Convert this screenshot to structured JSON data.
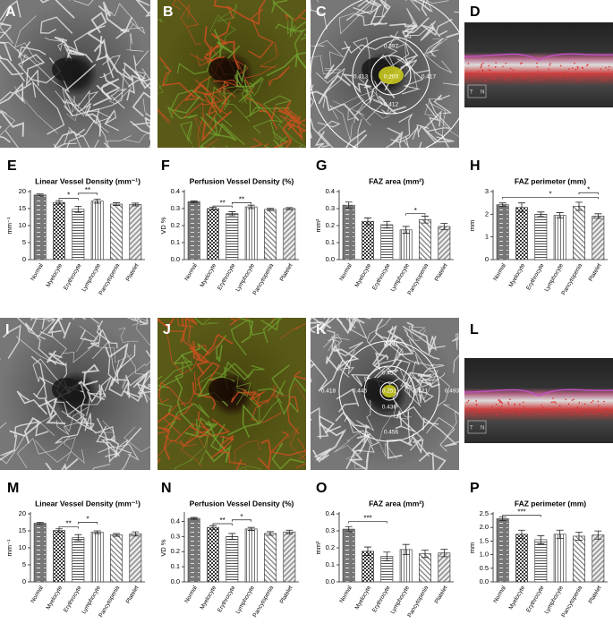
{
  "chart_data": [
    {
      "type": "bar",
      "panel": "E",
      "title": "Linear Vessel Density (mm⁻¹)",
      "ylabel": "mm⁻¹",
      "categories": [
        "Normal",
        "Myelocyte",
        "Erythrocyte",
        "Lymphocyte",
        "Pancytopenia",
        "Platelet"
      ],
      "values": [
        19,
        16.8,
        14.8,
        17.2,
        16.3,
        16.2
      ],
      "errors": [
        0.3,
        0.5,
        0.9,
        0.6,
        0.4,
        0.4
      ],
      "ylim": [
        0,
        20
      ],
      "yticks": [
        0,
        5,
        10,
        15,
        20
      ],
      "significance": [
        {
          "label": "*",
          "from": "Myelocyte",
          "to": "Erythrocyte",
          "y": 18
        },
        {
          "label": "**",
          "from": "Erythrocyte",
          "to": "Lymphocyte",
          "y": 19.5
        }
      ]
    },
    {
      "type": "bar",
      "panel": "F",
      "title": "Perfusion Vessel Density (%)",
      "ylabel": "VD %",
      "categories": [
        "Normal",
        "Myelocyte",
        "Erythrocyte",
        "Lymphocyte",
        "Pancytopenia",
        "Platelet"
      ],
      "values": [
        0.34,
        0.3,
        0.27,
        0.31,
        0.295,
        0.3
      ],
      "errors": [
        0.005,
        0.008,
        0.012,
        0.01,
        0.006,
        0.006
      ],
      "ylim": [
        0,
        0.4
      ],
      "yticks": [
        {
          "value": 0,
          "label": "0.0"
        },
        0.1,
        0.2,
        0.3,
        0.4
      ],
      "significance": [
        {
          "label": "**",
          "from": "Myelocyte",
          "to": "Erythrocyte",
          "y": 0.315
        },
        {
          "label": "**",
          "from": "Erythrocyte",
          "to": "Lymphocyte",
          "y": 0.335
        }
      ]
    },
    {
      "type": "bar",
      "panel": "G",
      "title": "FAZ area (mm²)",
      "ylabel": "mm²",
      "categories": [
        "Normal",
        "Myelocyte",
        "Erythrocyte",
        "Lymphocyte",
        "Pancytopenia",
        "Platelet"
      ],
      "values": [
        0.32,
        0.225,
        0.205,
        0.175,
        0.235,
        0.195
      ],
      "errors": [
        0.018,
        0.02,
        0.02,
        0.02,
        0.02,
        0.018
      ],
      "ylim": [
        0,
        0.4
      ],
      "yticks": [
        {
          "value": 0,
          "label": "0.0"
        },
        0.1,
        0.2,
        0.3,
        0.4
      ],
      "significance": [
        {
          "label": "*",
          "from": "Lymphocyte",
          "to": "Pancytopenia",
          "y": 0.27
        }
      ]
    },
    {
      "type": "bar",
      "panel": "H",
      "title": "FAZ perimeter (mm)",
      "ylabel": "mm",
      "categories": [
        "Normal",
        "Myelocyte",
        "Erythrocyte",
        "Lymphocyte",
        "Pancytopenia",
        "Platelet"
      ],
      "values": [
        2.42,
        2.3,
        2.0,
        1.95,
        2.35,
        1.92
      ],
      "errors": [
        0.08,
        0.2,
        0.1,
        0.12,
        0.18,
        0.1
      ],
      "ylim": [
        0,
        3
      ],
      "yticks": [
        0,
        1,
        2,
        3
      ],
      "significance": [
        {
          "label": "*",
          "from": "Normal",
          "to": "Platelet",
          "y": 2.75
        },
        {
          "label": "*",
          "from": "Pancytopenia",
          "to": "Platelet",
          "y": 2.95
        }
      ]
    },
    {
      "type": "bar",
      "panel": "M",
      "title": "Linear Vessel Density (mm⁻¹)",
      "ylabel": "mm⁻¹",
      "categories": [
        "Normal",
        "Myelocyte",
        "Erythrocyte",
        "Lymphocyte",
        "Pancytopenia",
        "Platelet"
      ],
      "values": [
        17.2,
        15.1,
        13,
        14.6,
        13.8,
        14.1
      ],
      "errors": [
        0.3,
        0.5,
        0.9,
        0.4,
        0.4,
        0.6
      ],
      "ylim": [
        0,
        20
      ],
      "yticks": [
        0,
        5,
        10,
        15,
        20
      ],
      "significance": [
        {
          "label": "**",
          "from": "Myelocyte",
          "to": "Erythrocyte",
          "y": 16.2
        },
        {
          "label": "*",
          "from": "Erythrocyte",
          "to": "Lymphocyte",
          "y": 17.5
        }
      ]
    },
    {
      "type": "bar",
      "panel": "N",
      "title": "Perfusion Vessel Density (%)",
      "ylabel": "VD %",
      "categories": [
        "Normal",
        "Myelocyte",
        "Erythrocyte",
        "Lymphocyte",
        "Pancytopenia",
        "Platelet"
      ],
      "values": [
        0.42,
        0.36,
        0.3,
        0.35,
        0.32,
        0.33
      ],
      "errors": [
        0.006,
        0.012,
        0.02,
        0.01,
        0.012,
        0.012
      ],
      "ylim": [
        0,
        0.45
      ],
      "yticks": [
        {
          "value": 0,
          "label": "0.0"
        },
        0.1,
        0.2,
        0.3,
        0.4
      ],
      "significance": [
        {
          "label": "**",
          "from": "Myelocyte",
          "to": "Erythrocyte",
          "y": 0.385
        },
        {
          "label": "*",
          "from": "Erythrocyte",
          "to": "Lymphocyte",
          "y": 0.41
        }
      ]
    },
    {
      "type": "bar",
      "panel": "O",
      "title": "FAZ area (mm²)",
      "ylabel": "mm²",
      "categories": [
        "Normal",
        "Myelocyte",
        "Erythrocyte",
        "Lymphocyte",
        "Pancytopenia",
        "Platelet"
      ],
      "values": [
        0.31,
        0.18,
        0.15,
        0.19,
        0.165,
        0.17
      ],
      "errors": [
        0.015,
        0.025,
        0.025,
        0.03,
        0.022,
        0.022
      ],
      "ylim": [
        0,
        0.4
      ],
      "yticks": [
        {
          "value": 0,
          "label": "0.0"
        },
        0.1,
        0.2,
        0.3,
        0.4
      ],
      "significance": [
        {
          "label": "***",
          "from": "Normal",
          "to": "Erythrocyte",
          "y": 0.355
        }
      ]
    },
    {
      "type": "bar",
      "panel": "P",
      "title": "FAZ perimeter (mm)",
      "ylabel": "mm",
      "categories": [
        "Normal",
        "Myelocyte",
        "Erythrocyte",
        "Lymphocyte",
        "Pancytopenia",
        "Platelet"
      ],
      "values": [
        2.32,
        1.75,
        1.55,
        1.75,
        1.68,
        1.72
      ],
      "errors": [
        0.07,
        0.15,
        0.15,
        0.15,
        0.15,
        0.15
      ],
      "ylim": [
        0,
        2.5
      ],
      "yticks": [
        {
          "value": 0,
          "label": "0.0"
        },
        0.5,
        {
          "value": 1,
          "label": "1.0"
        },
        1.5,
        {
          "value": 2,
          "label": "2.0"
        },
        2.5
      ],
      "significance": [
        {
          "label": "***",
          "from": "Normal",
          "to": "Erythrocyte",
          "y": 2.45
        }
      ]
    }
  ],
  "images": [
    {
      "label": "A",
      "kind": "gray"
    },
    {
      "label": "B",
      "kind": "color"
    },
    {
      "label": "C",
      "kind": "grid",
      "annotations": [
        "0.397",
        "0.413",
        "0.203",
        "0.417",
        "0.412"
      ]
    },
    {
      "label": "D",
      "kind": "oct",
      "annotations": [
        "T",
        "N"
      ]
    },
    {
      "label": "I",
      "kind": "gray"
    },
    {
      "label": "J",
      "kind": "color"
    },
    {
      "label": "K",
      "kind": "grid",
      "annotations": [
        "0.441",
        "0.452",
        "0.418",
        "0.446",
        "0.251",
        "0.421",
        "0.493",
        "0.436",
        "0.456"
      ]
    },
    {
      "label": "L",
      "kind": "oct",
      "annotations": [
        "T",
        "N"
      ]
    }
  ]
}
